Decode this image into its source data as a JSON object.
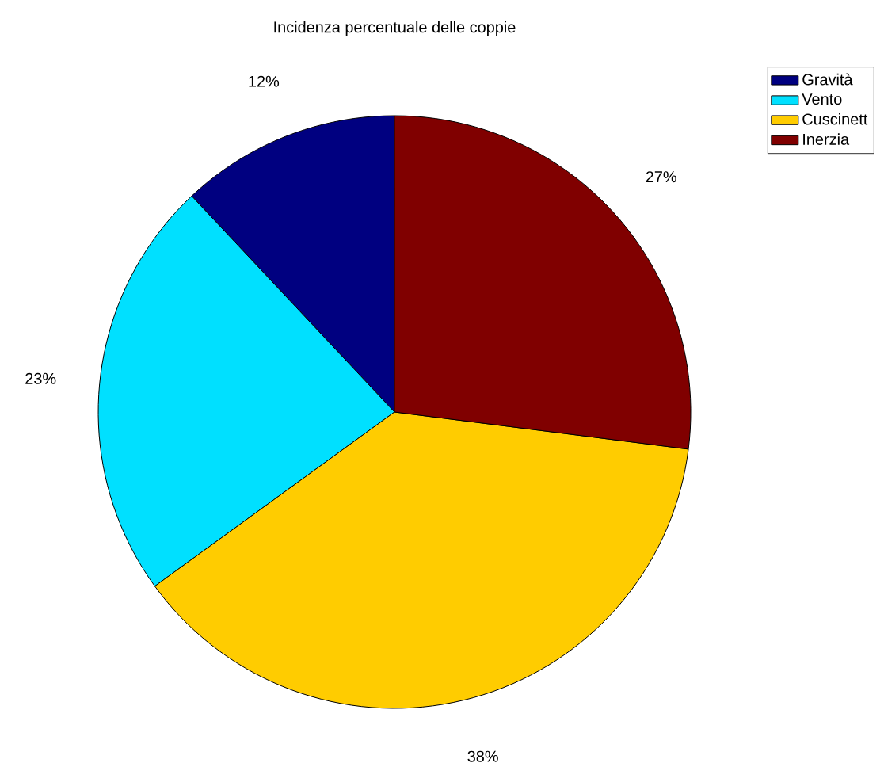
{
  "chart_data": {
    "type": "pie",
    "title": "Incidenza percentuale delle coppie",
    "categories": [
      "Gravità",
      "Vento",
      "Cuscinett",
      "Inerzia"
    ],
    "values": [
      12,
      23,
      38,
      27
    ],
    "colors": [
      "#000080",
      "#00e0ff",
      "#ffcc00",
      "#800000"
    ],
    "value_labels": [
      "12%",
      "23%",
      "38%",
      "27%"
    ],
    "legend": "top right"
  }
}
